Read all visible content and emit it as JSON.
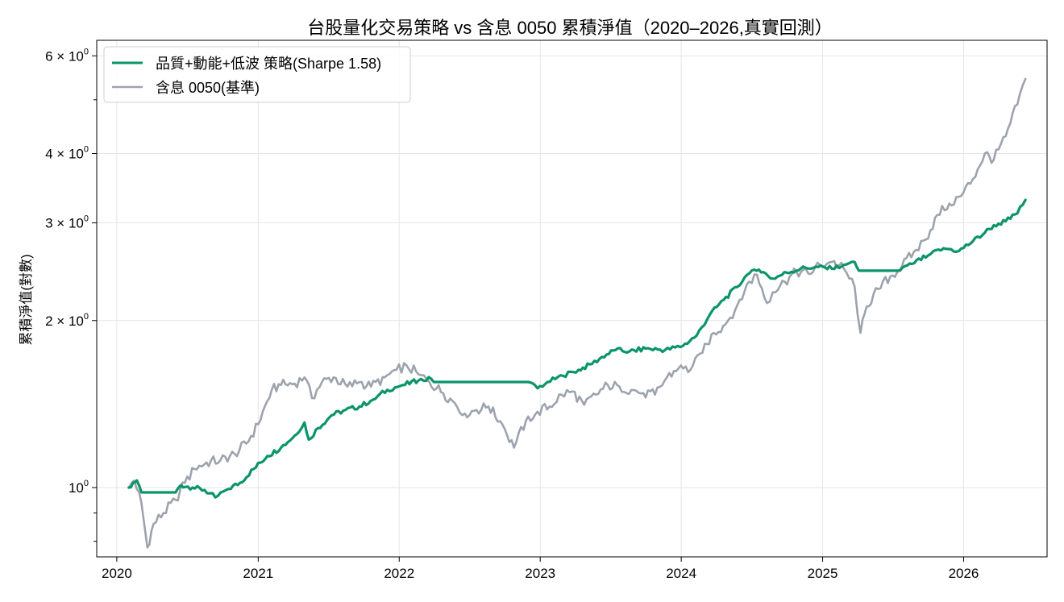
{
  "chart_data": {
    "type": "line",
    "title": "台股量化交易策略 vs 含息 0050 累積淨值（2020–2026,真實回測）",
    "xlabel": "",
    "ylabel": "累積淨值(對數)",
    "y_scale": "log",
    "ylim": [
      0.75,
      6.4
    ],
    "xlim": [
      "2019-11-10",
      "2026-08-05"
    ],
    "x_ticks": [
      "2020",
      "2021",
      "2022",
      "2023",
      "2024",
      "2025",
      "2026"
    ],
    "y_ticks": [
      {
        "value": 1,
        "base": "10",
        "exp": "0"
      },
      {
        "value": 2,
        "base": "2 × 10",
        "exp": "0"
      },
      {
        "value": 3,
        "base": "3 × 10",
        "exp": "0"
      },
      {
        "value": 4,
        "base": "4 × 10",
        "exp": "0"
      },
      {
        "value": 6,
        "base": "6 × 10",
        "exp": "0"
      }
    ],
    "grid": true,
    "legend_position": "top-left",
    "series": [
      {
        "name": "品質+動能+低波 策略(Sharpe 1.58)",
        "color": "#0b9469",
        "points": [
          [
            "2020-02-01",
            1.0
          ],
          [
            "2020-02-12",
            1.02
          ],
          [
            "2020-02-22",
            1.03
          ],
          [
            "2020-03-05",
            0.98
          ],
          [
            "2020-06-01",
            0.98
          ],
          [
            "2020-06-15",
            1.01
          ],
          [
            "2020-07-15",
            1.0
          ],
          [
            "2020-08-15",
            0.99
          ],
          [
            "2020-09-12",
            0.96
          ],
          [
            "2020-10-10",
            0.99
          ],
          [
            "2020-11-15",
            1.02
          ],
          [
            "2020-12-20",
            1.08
          ],
          [
            "2021-01-25",
            1.14
          ],
          [
            "2021-03-01",
            1.18
          ],
          [
            "2021-04-05",
            1.24
          ],
          [
            "2021-05-01",
            1.31
          ],
          [
            "2021-05-12",
            1.22
          ],
          [
            "2021-06-05",
            1.28
          ],
          [
            "2021-07-10",
            1.35
          ],
          [
            "2021-08-15",
            1.38
          ],
          [
            "2021-09-20",
            1.4
          ],
          [
            "2021-10-25",
            1.44
          ],
          [
            "2021-12-01",
            1.5
          ],
          [
            "2022-01-10",
            1.53
          ],
          [
            "2022-02-20",
            1.56
          ],
          [
            "2022-03-25",
            1.57
          ],
          [
            "2022-04-01",
            1.55
          ],
          [
            "2022-11-30",
            1.55
          ],
          [
            "2022-12-25",
            1.51
          ],
          [
            "2023-01-20",
            1.55
          ],
          [
            "2023-03-01",
            1.59
          ],
          [
            "2023-04-10",
            1.63
          ],
          [
            "2023-05-15",
            1.67
          ],
          [
            "2023-06-10",
            1.72
          ],
          [
            "2023-07-15",
            1.77
          ],
          [
            "2023-08-20",
            1.76
          ],
          [
            "2023-10-01",
            1.78
          ],
          [
            "2023-11-20",
            1.77
          ],
          [
            "2024-01-05",
            1.8
          ],
          [
            "2024-02-10",
            1.88
          ],
          [
            "2024-03-15",
            2.05
          ],
          [
            "2024-04-20",
            2.18
          ],
          [
            "2024-05-25",
            2.3
          ],
          [
            "2024-06-20",
            2.42
          ],
          [
            "2024-07-20",
            2.47
          ],
          [
            "2024-08-25",
            2.38
          ],
          [
            "2024-09-30",
            2.44
          ],
          [
            "2024-11-05",
            2.48
          ],
          [
            "2024-12-15",
            2.5
          ],
          [
            "2025-01-25",
            2.48
          ],
          [
            "2025-02-25",
            2.52
          ],
          [
            "2025-03-25",
            2.55
          ],
          [
            "2025-04-05",
            2.46
          ],
          [
            "2025-07-15",
            2.46
          ],
          [
            "2025-08-20",
            2.53
          ],
          [
            "2025-10-01",
            2.62
          ],
          [
            "2025-11-10",
            2.7
          ],
          [
            "2025-12-20",
            2.67
          ],
          [
            "2026-01-25",
            2.78
          ],
          [
            "2026-02-25",
            2.88
          ],
          [
            "2026-03-20",
            2.97
          ],
          [
            "2026-04-20",
            3.02
          ],
          [
            "2026-05-20",
            3.12
          ],
          [
            "2026-06-10",
            3.3
          ]
        ]
      },
      {
        "name": "含息 0050(基準)",
        "color": "#9da3ae",
        "points": [
          [
            "2020-02-01",
            1.0
          ],
          [
            "2020-02-15",
            1.03
          ],
          [
            "2020-02-28",
            0.98
          ],
          [
            "2020-03-10",
            0.88
          ],
          [
            "2020-03-20",
            0.78
          ],
          [
            "2020-04-05",
            0.86
          ],
          [
            "2020-05-01",
            0.9
          ],
          [
            "2020-06-01",
            0.95
          ],
          [
            "2020-06-25",
            1.02
          ],
          [
            "2020-07-20",
            1.08
          ],
          [
            "2020-08-20",
            1.11
          ],
          [
            "2020-09-25",
            1.12
          ],
          [
            "2020-11-01",
            1.15
          ],
          [
            "2020-12-01",
            1.2
          ],
          [
            "2021-01-01",
            1.3
          ],
          [
            "2021-02-05",
            1.5
          ],
          [
            "2021-03-01",
            1.53
          ],
          [
            "2021-04-05",
            1.54
          ],
          [
            "2021-05-01",
            1.58
          ],
          [
            "2021-05-20",
            1.45
          ],
          [
            "2021-06-15",
            1.55
          ],
          [
            "2021-07-15",
            1.58
          ],
          [
            "2021-08-20",
            1.52
          ],
          [
            "2021-09-20",
            1.55
          ],
          [
            "2021-10-20",
            1.52
          ],
          [
            "2021-11-25",
            1.58
          ],
          [
            "2021-12-25",
            1.63
          ],
          [
            "2022-01-20",
            1.66
          ],
          [
            "2022-02-20",
            1.6
          ],
          [
            "2022-03-20",
            1.55
          ],
          [
            "2022-04-25",
            1.48
          ],
          [
            "2022-05-25",
            1.42
          ],
          [
            "2022-06-20",
            1.36
          ],
          [
            "2022-07-20",
            1.38
          ],
          [
            "2022-08-20",
            1.4
          ],
          [
            "2022-09-25",
            1.3
          ],
          [
            "2022-10-25",
            1.18
          ],
          [
            "2022-11-25",
            1.32
          ],
          [
            "2022-12-25",
            1.37
          ],
          [
            "2023-01-25",
            1.4
          ],
          [
            "2023-02-25",
            1.47
          ],
          [
            "2023-03-25",
            1.49
          ],
          [
            "2023-04-25",
            1.41
          ],
          [
            "2023-05-25",
            1.47
          ],
          [
            "2023-06-25",
            1.53
          ],
          [
            "2023-07-25",
            1.52
          ],
          [
            "2023-08-25",
            1.5
          ],
          [
            "2023-09-25",
            1.48
          ],
          [
            "2023-10-25",
            1.47
          ],
          [
            "2023-11-25",
            1.58
          ],
          [
            "2023-12-25",
            1.64
          ],
          [
            "2024-01-25",
            1.63
          ],
          [
            "2024-02-25",
            1.75
          ],
          [
            "2024-03-25",
            1.9
          ],
          [
            "2024-04-25",
            1.97
          ],
          [
            "2024-05-25",
            2.13
          ],
          [
            "2024-06-25",
            2.35
          ],
          [
            "2024-07-15",
            2.42
          ],
          [
            "2024-08-10",
            2.15
          ],
          [
            "2024-08-25",
            2.25
          ],
          [
            "2024-09-25",
            2.35
          ],
          [
            "2024-10-25",
            2.45
          ],
          [
            "2024-11-25",
            2.43
          ],
          [
            "2024-12-25",
            2.52
          ],
          [
            "2025-01-25",
            2.55
          ],
          [
            "2025-02-25",
            2.48
          ],
          [
            "2025-03-25",
            2.3
          ],
          [
            "2025-04-09",
            1.9
          ],
          [
            "2025-04-25",
            2.12
          ],
          [
            "2025-05-25",
            2.28
          ],
          [
            "2025-06-25",
            2.4
          ],
          [
            "2025-07-25",
            2.5
          ],
          [
            "2025-08-25",
            2.66
          ],
          [
            "2025-09-25",
            2.8
          ],
          [
            "2025-10-25",
            3.1
          ],
          [
            "2025-11-25",
            3.25
          ],
          [
            "2025-12-25",
            3.35
          ],
          [
            "2026-01-25",
            3.6
          ],
          [
            "2026-02-25",
            4.0
          ],
          [
            "2026-03-20",
            3.9
          ],
          [
            "2026-04-20",
            4.3
          ],
          [
            "2026-05-20",
            4.9
          ],
          [
            "2026-06-10",
            5.45
          ]
        ]
      }
    ]
  }
}
